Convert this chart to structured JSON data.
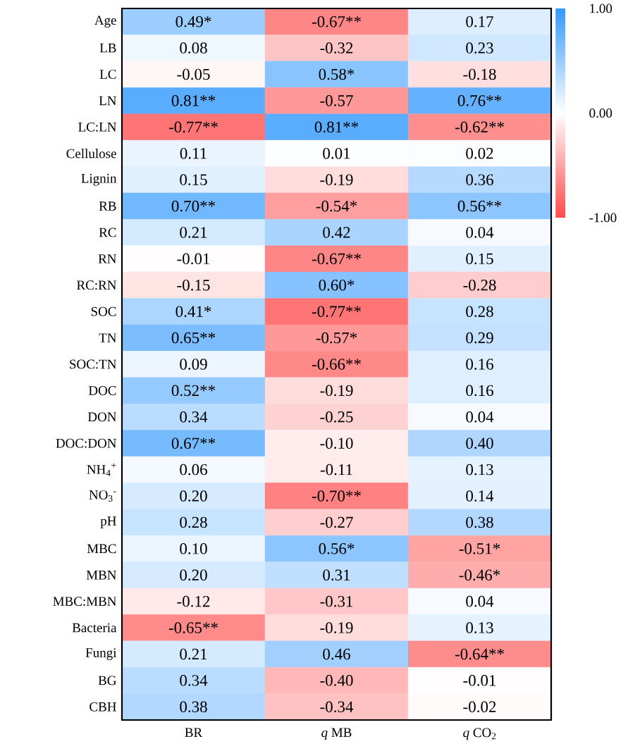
{
  "chart_data": {
    "type": "heatmap",
    "categories": [
      "BR",
      "*q* MB",
      "*q* CO$_{2}$"
    ],
    "y_categories": [
      "Age",
      "LB",
      "LC",
      "LN",
      "LC:LN",
      "Cellulose",
      "Lignin",
      "RB",
      "RC",
      "RN",
      "RC:RN",
      "SOC",
      "TN",
      "SOC:TN",
      "DOC",
      "DON",
      "DOC:DON",
      "NH$_{4}$$^{+}$",
      "NO$_{3}$$^{-}$",
      "pH",
      "MBC",
      "MBN",
      "MBC:MBN",
      "Bacteria",
      "Fungi",
      "BG",
      "CBH"
    ],
    "cells": [
      [
        0.49,
        -0.67,
        0.17
      ],
      [
        0.08,
        -0.32,
        0.23
      ],
      [
        -0.05,
        0.58,
        -0.18
      ],
      [
        0.81,
        -0.57,
        0.76
      ],
      [
        -0.77,
        0.81,
        -0.62
      ],
      [
        0.11,
        0.01,
        0.02
      ],
      [
        0.15,
        -0.19,
        0.36
      ],
      [
        0.7,
        -0.54,
        0.56
      ],
      [
        0.21,
        0.42,
        0.04
      ],
      [
        -0.01,
        -0.67,
        0.15
      ],
      [
        -0.15,
        0.6,
        -0.28
      ],
      [
        0.41,
        -0.77,
        0.28
      ],
      [
        0.65,
        -0.57,
        0.29
      ],
      [
        0.09,
        -0.66,
        0.16
      ],
      [
        0.52,
        -0.19,
        0.16
      ],
      [
        0.34,
        -0.25,
        0.04
      ],
      [
        0.67,
        -0.1,
        0.4
      ],
      [
        0.06,
        -0.11,
        0.13
      ],
      [
        0.2,
        -0.7,
        0.14
      ],
      [
        0.28,
        -0.27,
        0.38
      ],
      [
        0.1,
        0.56,
        -0.51
      ],
      [
        0.2,
        0.31,
        -0.46
      ],
      [
        -0.12,
        -0.31,
        0.04
      ],
      [
        -0.65,
        -0.19,
        0.13
      ],
      [
        0.21,
        0.46,
        -0.64
      ],
      [
        0.34,
        -0.4,
        -0.01
      ],
      [
        0.38,
        -0.34,
        -0.02
      ]
    ],
    "cell_labels": [
      [
        "0.49*",
        "-0.67**",
        "0.17"
      ],
      [
        "0.08",
        "-0.32",
        "0.23"
      ],
      [
        "-0.05",
        "0.58*",
        "-0.18"
      ],
      [
        "0.81**",
        "-0.57",
        "0.76**"
      ],
      [
        "-0.77**",
        "0.81**",
        "-0.62**"
      ],
      [
        "0.11",
        "0.01",
        "0.02"
      ],
      [
        "0.15",
        "-0.19",
        "0.36"
      ],
      [
        "0.70**",
        "-0.54*",
        "0.56**"
      ],
      [
        "0.21",
        "0.42",
        "0.04"
      ],
      [
        "-0.01",
        "-0.67**",
        "0.15"
      ],
      [
        "-0.15",
        "0.60*",
        "-0.28"
      ],
      [
        "0.41*",
        "-0.77**",
        "0.28"
      ],
      [
        "0.65**",
        "-0.57*",
        "0.29"
      ],
      [
        "0.09",
        "-0.66**",
        "0.16"
      ],
      [
        "0.52**",
        "-0.19",
        "0.16"
      ],
      [
        "0.34",
        "-0.25",
        "0.04"
      ],
      [
        "0.67**",
        "-0.10",
        "0.40"
      ],
      [
        "0.06",
        "-0.11",
        "0.13"
      ],
      [
        "0.20",
        "-0.70**",
        "0.14"
      ],
      [
        "0.28",
        "-0.27",
        "0.38"
      ],
      [
        "0.10",
        "0.56*",
        "-0.51*"
      ],
      [
        "0.20",
        "0.31",
        "-0.46*"
      ],
      [
        "-0.12",
        "-0.31",
        "0.04"
      ],
      [
        "-0.65**",
        "-0.19",
        "0.13"
      ],
      [
        "0.21",
        "0.46",
        "-0.64**"
      ],
      [
        "0.34",
        "-0.40",
        "-0.01"
      ],
      [
        "0.38",
        "-0.34",
        "-0.02"
      ]
    ],
    "clim": [
      -1,
      1
    ],
    "cticks": [
      {
        "value": 1,
        "label": "1.00"
      },
      {
        "value": 0,
        "label": "0.00"
      },
      {
        "value": -1,
        "label": "-1.00"
      }
    ]
  }
}
